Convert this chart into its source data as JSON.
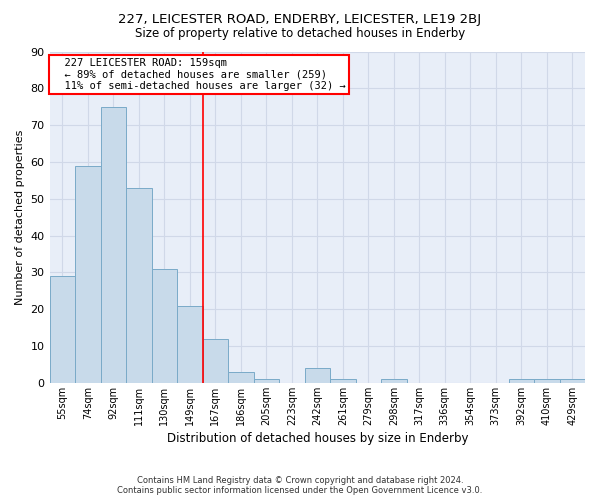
{
  "title": "227, LEICESTER ROAD, ENDERBY, LEICESTER, LE19 2BJ",
  "subtitle": "Size of property relative to detached houses in Enderby",
  "xlabel": "Distribution of detached houses by size in Enderby",
  "ylabel": "Number of detached properties",
  "footer1": "Contains HM Land Registry data © Crown copyright and database right 2024.",
  "footer2": "Contains public sector information licensed under the Open Government Licence v3.0.",
  "categories": [
    "55sqm",
    "74sqm",
    "92sqm",
    "111sqm",
    "130sqm",
    "149sqm",
    "167sqm",
    "186sqm",
    "205sqm",
    "223sqm",
    "242sqm",
    "261sqm",
    "279sqm",
    "298sqm",
    "317sqm",
    "336sqm",
    "354sqm",
    "373sqm",
    "392sqm",
    "410sqm",
    "429sqm"
  ],
  "values": [
    29,
    59,
    75,
    53,
    31,
    21,
    12,
    3,
    1,
    0,
    4,
    1,
    0,
    1,
    0,
    0,
    0,
    0,
    1,
    1,
    1
  ],
  "bar_color": "#c8daea",
  "bar_edge_color": "#7aaac8",
  "grid_color": "#d0d8e8",
  "bg_color": "#ffffff",
  "plot_bg_color": "#e8eef8",
  "annotation_text": "  227 LEICESTER ROAD: 159sqm\n  ← 89% of detached houses are smaller (259)\n  11% of semi-detached houses are larger (32) →",
  "annotation_box_color": "white",
  "annotation_box_edge": "red",
  "redline_x": 5.5,
  "ylim": [
    0,
    90
  ],
  "yticks": [
    0,
    10,
    20,
    30,
    40,
    50,
    60,
    70,
    80,
    90
  ]
}
